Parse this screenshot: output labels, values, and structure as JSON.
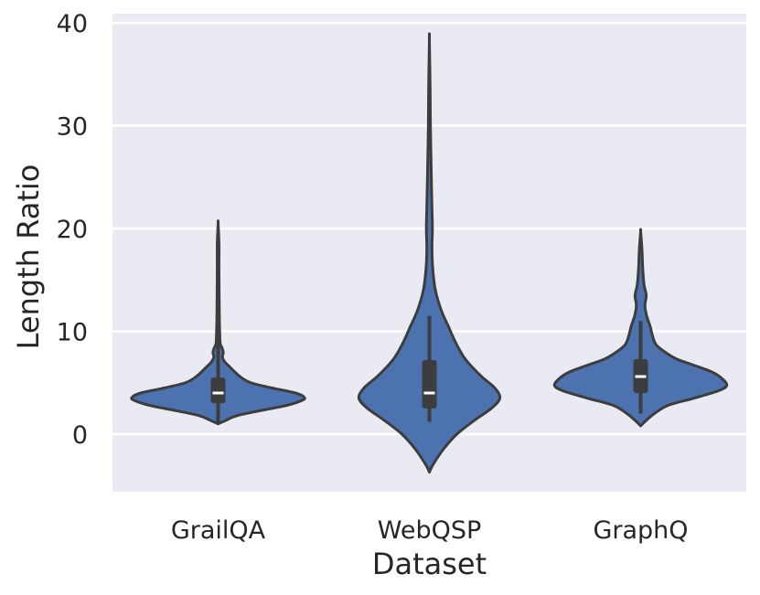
{
  "chart_data": {
    "type": "violin",
    "xlabel": "Dataset",
    "ylabel": "Length Ratio",
    "ylim": [
      -6,
      41
    ],
    "yticks": [
      0,
      10,
      20,
      30,
      40
    ],
    "grid": true,
    "colors": {
      "background": "#eaeaf2",
      "violin_fill": "#4c72b0",
      "outline": "#3d3d3d",
      "grid": "#ffffff",
      "median": "#ffffff"
    },
    "categories": [
      "GrailQA",
      "WebQSP",
      "GraphQ"
    ],
    "violins": [
      {
        "label": "GrailQA",
        "min": 1.0,
        "max": 20.5,
        "q1": 3.0,
        "median": 4.0,
        "q3": 5.5,
        "whisker_low": 1.0,
        "whisker_high": 13.5,
        "density": [
          [
            1.0,
            0.0
          ],
          [
            1.3,
            0.08
          ],
          [
            1.8,
            0.22
          ],
          [
            2.3,
            0.5
          ],
          [
            2.8,
            0.8
          ],
          [
            3.3,
            0.98
          ],
          [
            3.6,
            1.0
          ],
          [
            4.0,
            0.9
          ],
          [
            4.5,
            0.62
          ],
          [
            5.0,
            0.38
          ],
          [
            5.5,
            0.27
          ],
          [
            6.0,
            0.2
          ],
          [
            6.5,
            0.14
          ],
          [
            7.0,
            0.08
          ],
          [
            7.5,
            0.05
          ],
          [
            7.9,
            0.06
          ],
          [
            8.3,
            0.05
          ],
          [
            8.8,
            0.025
          ],
          [
            9.5,
            0.02
          ],
          [
            11.0,
            0.015
          ],
          [
            13.5,
            0.012
          ],
          [
            16.0,
            0.01
          ],
          [
            18.5,
            0.01
          ],
          [
            20.5,
            0.0
          ]
        ]
      },
      {
        "label": "WebQSP",
        "min": -3.7,
        "max": 38.4,
        "q1": 2.5,
        "median": 4.0,
        "q3": 7.2,
        "whisker_low": 1.2,
        "whisker_high": 11.5,
        "density": [
          [
            -3.7,
            0.0
          ],
          [
            -3.0,
            0.04
          ],
          [
            -1.5,
            0.16
          ],
          [
            0.0,
            0.32
          ],
          [
            1.5,
            0.55
          ],
          [
            2.5,
            0.72
          ],
          [
            3.5,
            0.82
          ],
          [
            4.5,
            0.76
          ],
          [
            5.5,
            0.62
          ],
          [
            6.5,
            0.5
          ],
          [
            7.5,
            0.4
          ],
          [
            9.0,
            0.3
          ],
          [
            10.5,
            0.22
          ],
          [
            12.0,
            0.14
          ],
          [
            14.0,
            0.07
          ],
          [
            16.0,
            0.04
          ],
          [
            18.0,
            0.03
          ],
          [
            20.0,
            0.035
          ],
          [
            22.0,
            0.03
          ],
          [
            24.0,
            0.025
          ],
          [
            27.0,
            0.018
          ],
          [
            30.0,
            0.012
          ],
          [
            34.0,
            0.008
          ],
          [
            38.4,
            0.0
          ]
        ]
      },
      {
        "label": "GraphQ",
        "min": 0.8,
        "max": 19.7,
        "q1": 4.0,
        "median": 5.6,
        "q3": 7.3,
        "whisker_low": 2.0,
        "whisker_high": 11.0,
        "density": [
          [
            0.8,
            0.0
          ],
          [
            1.3,
            0.06
          ],
          [
            2.0,
            0.16
          ],
          [
            2.8,
            0.32
          ],
          [
            3.5,
            0.62
          ],
          [
            4.2,
            0.9
          ],
          [
            4.7,
            1.0
          ],
          [
            5.3,
            0.96
          ],
          [
            6.0,
            0.84
          ],
          [
            6.7,
            0.62
          ],
          [
            7.3,
            0.42
          ],
          [
            8.0,
            0.28
          ],
          [
            8.7,
            0.18
          ],
          [
            9.5,
            0.14
          ],
          [
            10.5,
            0.11
          ],
          [
            11.5,
            0.07
          ],
          [
            12.5,
            0.05
          ],
          [
            13.5,
            0.065
          ],
          [
            14.5,
            0.04
          ],
          [
            16.0,
            0.025
          ],
          [
            18.0,
            0.015
          ],
          [
            19.7,
            0.0
          ]
        ]
      }
    ]
  }
}
